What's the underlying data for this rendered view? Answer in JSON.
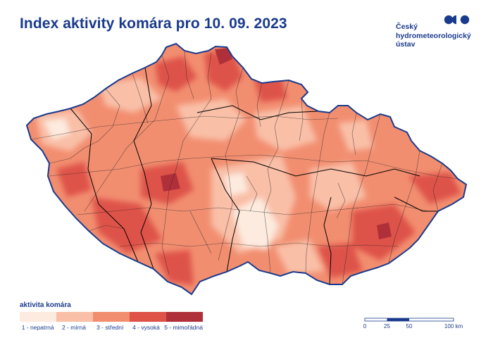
{
  "title": "Index aktivity komára pro 10. 09. 2023",
  "logo": {
    "name": "Český hydrometeorologický ústav",
    "lines": [
      "Český",
      "hydrometeorologický",
      "ústav"
    ],
    "brand_color": "#1a3a8c"
  },
  "legend": {
    "title": "aktivita komára",
    "classes": [
      {
        "label": "1 - nepatrná",
        "level": 1,
        "color": "#fdebdf"
      },
      {
        "label": "2 - mírná",
        "level": 2,
        "color": "#f9bfa7"
      },
      {
        "label": "3 - střední",
        "level": 3,
        "color": "#f28e70"
      },
      {
        "label": "4 - vysoká",
        "level": 4,
        "color": "#de5248"
      },
      {
        "label": "5 - mimořádná",
        "level": 5,
        "color": "#b0303a"
      }
    ]
  },
  "scale_bar": {
    "ticks": [
      "0",
      "25",
      "50",
      "100 km"
    ]
  },
  "map": {
    "region": "Czech Republic",
    "date": "10. 09. 2023",
    "border_color": "#1a3a8c"
  }
}
